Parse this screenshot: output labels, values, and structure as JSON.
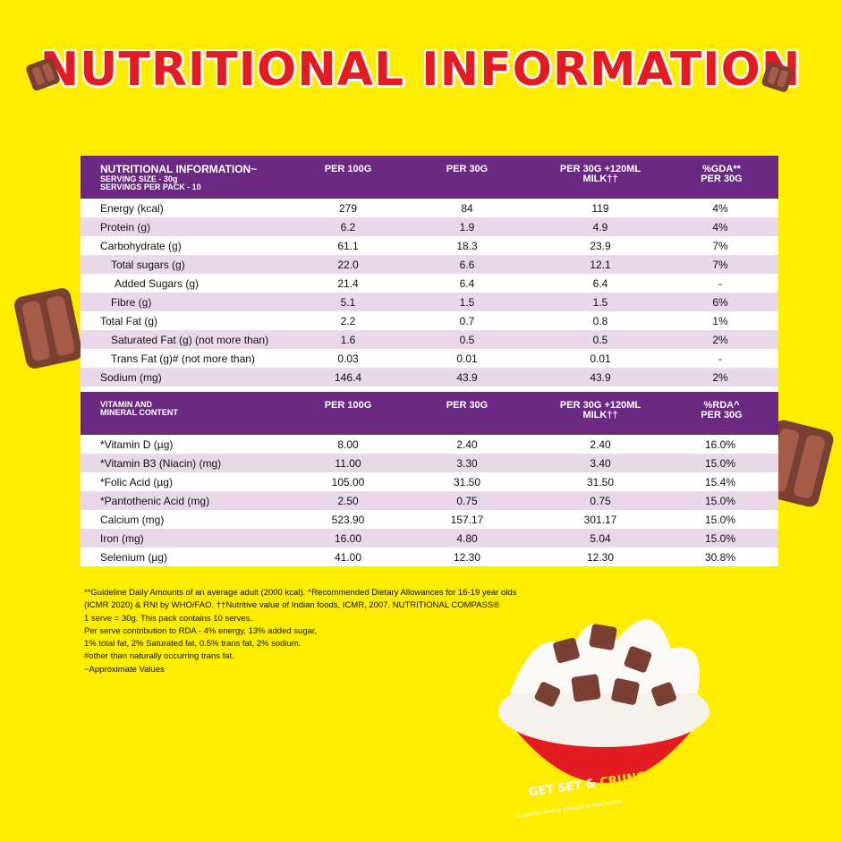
{
  "page": {
    "title": "NUTRITIONAL INFORMATION",
    "bg_color": "#FFED00",
    "accent": "#6A2A82",
    "title_color": "#E31B23"
  },
  "table1": {
    "head": {
      "col1_line1": "NUTRITIONAL INFORMATION~",
      "col1_line2": "SERVING SIZE - 30g",
      "col1_line3": "SERVINGS PER PACK - 10",
      "col2": "PER 100G",
      "col3": "PER 30G",
      "col4_line1": "PER 30G +120ML",
      "col4_line2": "MILK††",
      "col5_line1": "%GDA**",
      "col5_line2": "PER 30G"
    },
    "rows": [
      {
        "label": "Energy (kcal)",
        "per100": "279",
        "per30": "84",
        "milk": "119",
        "gda": "4%"
      },
      {
        "label": "Protein (g)",
        "per100": "6.2",
        "per30": "1.9",
        "milk": "4.9",
        "gda": "4%"
      },
      {
        "label": "Carbohydrate (g)",
        "per100": "61.1",
        "per30": "18.3",
        "milk": "23.9",
        "gda": "7%"
      },
      {
        "label": "Total sugars (g)",
        "per100": "22.0",
        "per30": "6.6",
        "milk": "12.1",
        "gda": "7%"
      },
      {
        "label": "Added Sugars (g)",
        "per100": "21.4",
        "per30": "6.4",
        "milk": "6.4",
        "gda": "-"
      },
      {
        "label": "Fibre (g)",
        "per100": "5.1",
        "per30": "1.5",
        "milk": "1.5",
        "gda": "6%"
      },
      {
        "label": "Total Fat (g)",
        "per100": "2.2",
        "per30": "0.7",
        "milk": "0.8",
        "gda": "1%"
      },
      {
        "label": "Saturated Fat (g) (not more than)",
        "per100": "1.6",
        "per30": "0.5",
        "milk": "0.5",
        "gda": "2%"
      },
      {
        "label": "Trans Fat (g)# (not more than)",
        "per100": "0.03",
        "per30": "0.01",
        "milk": "0.01",
        "gda": "-"
      },
      {
        "label": "Sodium (mg)",
        "per100": "146.4",
        "per30": "43.9",
        "milk": "43.9",
        "gda": "2%"
      }
    ]
  },
  "table2": {
    "head": {
      "col1_line1": "VITAMIN AND",
      "col1_line2": "MINERAL CONTENT",
      "col2": "PER 100G",
      "col3": "PER 30G",
      "col4_line1": "PER 30G +120ML",
      "col4_line2": "MILK††",
      "col5_line1": "%RDA^",
      "col5_line2": "PER 30G"
    },
    "rows": [
      {
        "label": "*Vitamin D (µg)",
        "per100": "8.00",
        "per30": "2.40",
        "milk": "2.40",
        "rda": "16.0%"
      },
      {
        "label": "*Vitamin B3 (Niacin) (mg)",
        "per100": "11.00",
        "per30": "3.30",
        "milk": "3.40",
        "rda": "15.0%"
      },
      {
        "label": "*Folic Acid (µg)",
        "per100": "105.00",
        "per30": "31.50",
        "milk": "31.50",
        "rda": "15.4%"
      },
      {
        "label": "*Pantothenic Acid (mg)",
        "per100": "2.50",
        "per30": "0.75",
        "milk": "0.75",
        "rda": "15.0%"
      },
      {
        "label": "Calcium (mg)",
        "per100": "523.90",
        "per30": "157.17",
        "milk": "301.17",
        "rda": "15.0%"
      },
      {
        "label": "Iron  (mg)",
        "per100": "16.00",
        "per30": "4.80",
        "milk": "5.04",
        "rda": "15.0%"
      },
      {
        "label": "Selenium (µg)",
        "per100": "41.00",
        "per30": "12.30",
        "milk": "12.30",
        "rda": "30.8%"
      }
    ]
  },
  "footnotes": [
    "**Guideline Daily Amounts of an average adult (2000 kcal). ^Recommended Dietary Allowances for 16-19 year olds",
    " (ICMR 2020) & RNI by WHO/FAO. ††Nutritive value of Indian foods, ICMR, 2007.  NUTRITIONAL COMPASS®",
    "1 serve = 30g. This pack contains 10 serves.",
    "Per serve contribution to RDA - 4% energy, 13% added sugar,",
    "1% total fat, 2% Saturated fat, 0.5% trans fat, 2% sodium.",
    "#other than naturally occurring trans fat.",
    "~Approximate Values"
  ],
  "bowl": {
    "tagline_a": "GET SET & ",
    "tagline_b": "CRUNCH",
    "note": "Suggested serving. Enlarged to show texture."
  }
}
